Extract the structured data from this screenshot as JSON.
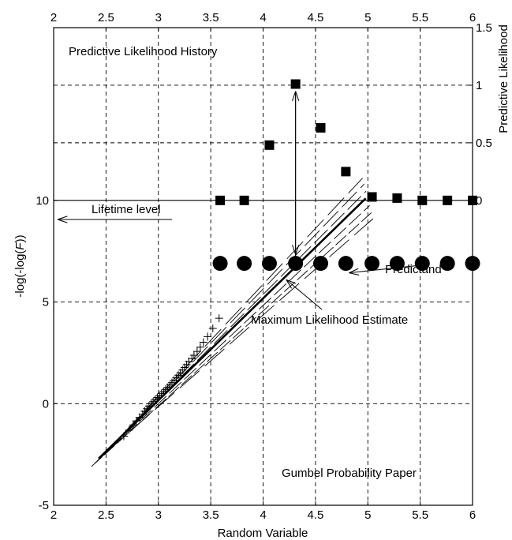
{
  "chart_data": {
    "type": "scatter",
    "title": "Gumbel Probability Paper",
    "xlabel": "Random Variable",
    "ylabel": "-log(-log(F))",
    "ylabel_parts": [
      "-log(-log(",
      "F",
      "))"
    ],
    "y2label": "Predictive Likelihood",
    "xlim": [
      2,
      6
    ],
    "ylim": [
      -5,
      18.5
    ],
    "y2lim": [
      0,
      1.5
    ],
    "x_ticks": [
      2,
      2.5,
      3,
      3.5,
      4,
      4.5,
      5,
      5.5,
      6
    ],
    "x_tick_labels": [
      "2",
      "2.5",
      "3",
      "3.5",
      "4",
      "4.5",
      "5",
      "5.5",
      "6"
    ],
    "y_ticks": [
      -5,
      0,
      5,
      10
    ],
    "y_tick_labels": [
      "-5",
      "0",
      "5",
      "10"
    ],
    "y2_ticks": [
      0,
      0.5,
      1,
      1.5
    ],
    "y2_tick_labels": [
      "0",
      "0.5",
      "1",
      "1.5"
    ],
    "grid": true,
    "annotations": {
      "history_label": "Predictive Likelihood History",
      "lifetime_label": "Lifetime level",
      "predictand_label": "Predictand",
      "mle_label": "Maximum Likelihood Estimate"
    },
    "series": [
      {
        "marker": "square",
        "axis": "right",
        "x": [
          3.59,
          3.82,
          4.06,
          4.31,
          4.55,
          4.79,
          5.04,
          5.28,
          5.52,
          5.76,
          6.0
        ],
        "values": [
          0.0,
          0.0,
          0.48,
          1.01,
          0.63,
          0.25,
          0.03,
          0.02,
          0.0,
          0.0,
          0.0
        ]
      },
      {
        "marker": "circle",
        "x": [
          3.59,
          3.82,
          4.06,
          4.31,
          4.55,
          4.79,
          5.04,
          5.28,
          5.52,
          5.76,
          6.0
        ],
        "values": [
          6.9,
          6.9,
          6.9,
          6.9,
          6.9,
          6.9,
          6.9,
          6.9,
          6.9,
          6.9,
          6.9
        ]
      },
      {
        "marker": "plus",
        "x": [
          2.67,
          2.72,
          2.76,
          2.79,
          2.82,
          2.85,
          2.87,
          2.89,
          2.91,
          2.93,
          2.95,
          2.97,
          2.99,
          3.01,
          3.03,
          3.05,
          3.07,
          3.09,
          3.11,
          3.13,
          3.15,
          3.17,
          3.19,
          3.21,
          3.23,
          3.25,
          3.27,
          3.29,
          3.32,
          3.34,
          3.37,
          3.4,
          3.43,
          3.47,
          3.52,
          3.58
        ],
        "values": [
          -1.6,
          -1.3,
          -1.05,
          -0.85,
          -0.68,
          -0.52,
          -0.38,
          -0.25,
          -0.12,
          0.0,
          0.1,
          0.2,
          0.3,
          0.4,
          0.5,
          0.6,
          0.7,
          0.8,
          0.92,
          1.03,
          1.15,
          1.27,
          1.4,
          1.52,
          1.65,
          1.78,
          1.92,
          2.07,
          2.22,
          2.38,
          2.57,
          2.78,
          3.02,
          3.3,
          3.7,
          4.2
        ]
      },
      {
        "style": "solid-thick",
        "x": [
          2.43,
          4.98
        ],
        "values": [
          -2.7,
          10.1
        ]
      },
      {
        "style": "dashed-band",
        "x": [
          2.43,
          5.0
        ],
        "values": [
          -2.75,
          10.1
        ],
        "offsets": [
          -0.35,
          -0.2,
          -0.08,
          0.06,
          0.18,
          0.3
        ],
        "spread": [
          -0.7,
          -0.35,
          0.35,
          0.7,
          1.0,
          -1.0
        ]
      }
    ]
  }
}
